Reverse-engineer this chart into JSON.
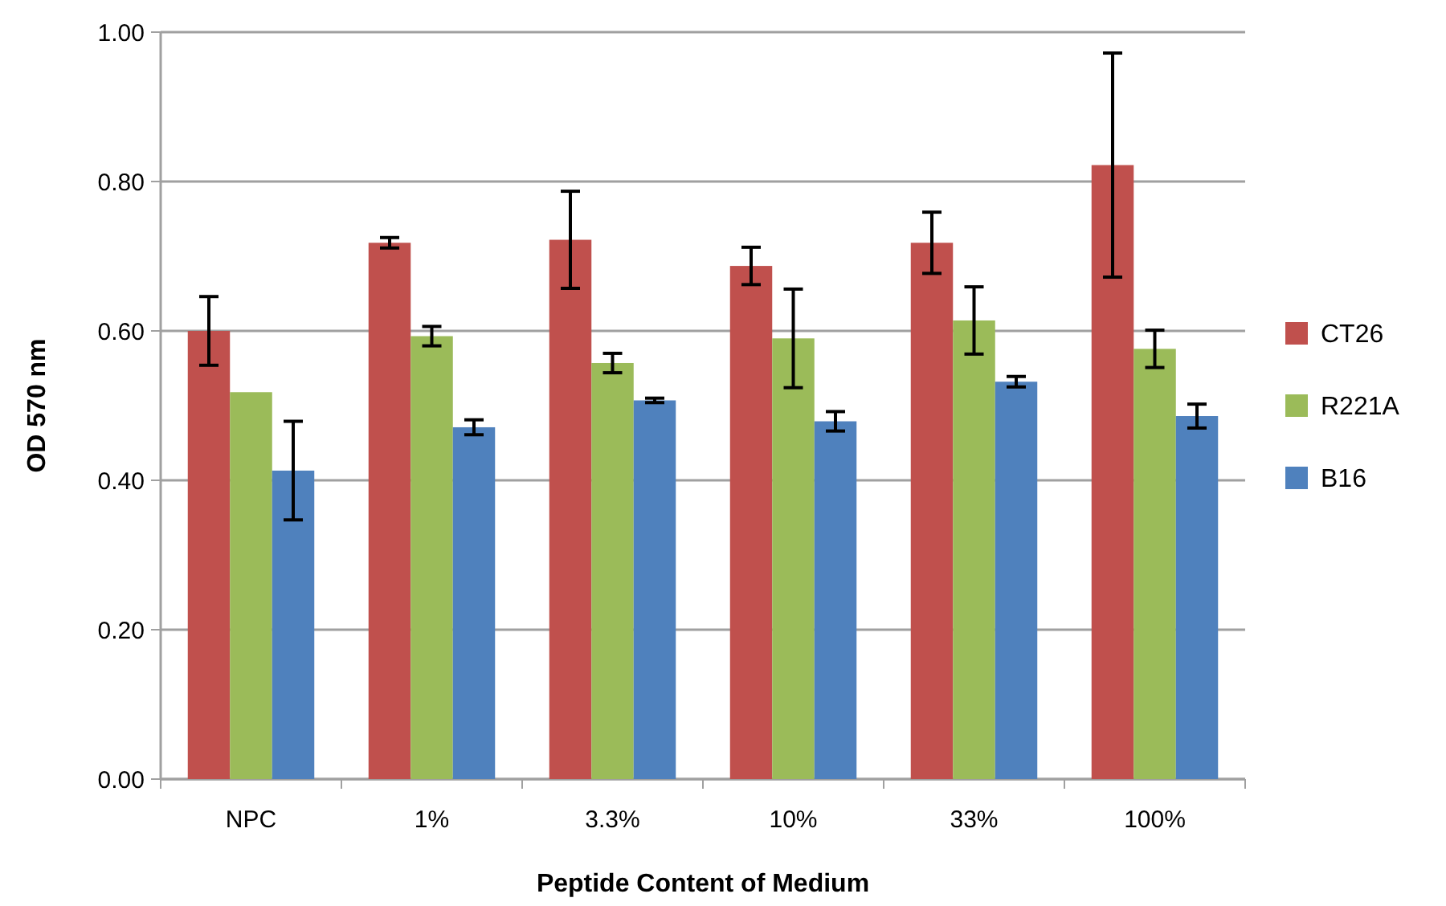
{
  "chart_data": {
    "type": "bar",
    "xlabel": "Peptide Content of Medium",
    "ylabel": "OD 570 nm",
    "categories": [
      "NPC",
      "1%",
      "3.3%",
      "10%",
      "33%",
      "100%"
    ],
    "series": [
      {
        "name": "CT26",
        "color": "#c0504d",
        "values": [
          0.6,
          0.718,
          0.722,
          0.687,
          0.718,
          0.822
        ],
        "errors": [
          0.046,
          0.007,
          0.065,
          0.025,
          0.041,
          0.15
        ]
      },
      {
        "name": "R221A",
        "color": "#9bbb59",
        "values": [
          0.518,
          0.593,
          0.557,
          0.59,
          0.614,
          0.576
        ],
        "errors": [
          null,
          0.013,
          0.013,
          0.066,
          0.045,
          0.025
        ]
      },
      {
        "name": "B16",
        "color": "#4f81bd",
        "values": [
          0.413,
          0.471,
          0.507,
          0.479,
          0.532,
          0.486
        ],
        "errors": [
          0.066,
          0.01,
          0.003,
          0.013,
          0.007,
          0.016
        ]
      }
    ],
    "ylim": [
      0,
      1
    ],
    "yticks": [
      {
        "value": 0,
        "label": "0.00"
      },
      {
        "value": 0.2,
        "label": "0.20"
      },
      {
        "value": 0.4,
        "label": "0.40"
      },
      {
        "value": 0.6,
        "label": "0.60"
      },
      {
        "value": 0.8,
        "label": "0.80"
      },
      {
        "value": 1,
        "label": "1.00"
      }
    ],
    "grid": "y",
    "legend": "right"
  }
}
